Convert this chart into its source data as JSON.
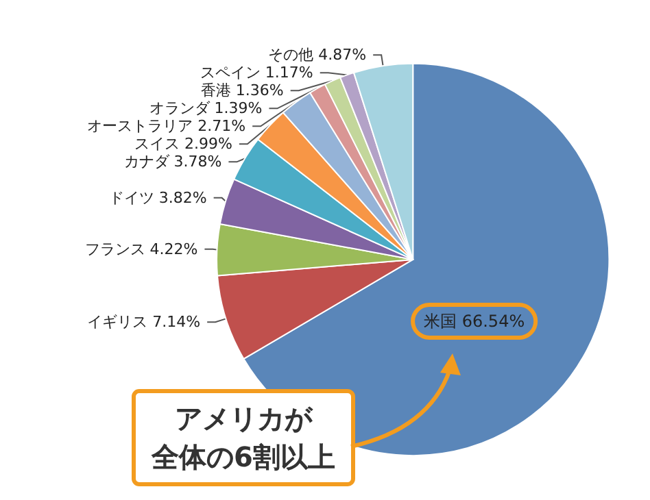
{
  "chart_data": {
    "type": "pie",
    "categories": [
      "米国",
      "イギリス",
      "フランス",
      "ドイツ",
      "カナダ",
      "スイス",
      "オーストラリア",
      "オランダ",
      "香港",
      "スペイン",
      "その他"
    ],
    "values": [
      66.54,
      7.14,
      4.22,
      3.82,
      3.78,
      2.99,
      2.71,
      1.39,
      1.36,
      1.17,
      4.87
    ],
    "value_labels": [
      "66.54%",
      "7.14%",
      "4.22%",
      "3.82%",
      "3.78%",
      "2.99%",
      "2.71%",
      "1.39%",
      "1.36%",
      "1.17%",
      "4.87%"
    ],
    "colors": [
      "#5a86b9",
      "#c0504d",
      "#9bbb59",
      "#8064a2",
      "#4bacc6",
      "#f79646",
      "#95b3d7",
      "#d99694",
      "#c3d69b",
      "#b3a2c7",
      "#a5d3e0"
    ],
    "annotations": [
      "アメリカが",
      "全体の6割以上"
    ]
  }
}
